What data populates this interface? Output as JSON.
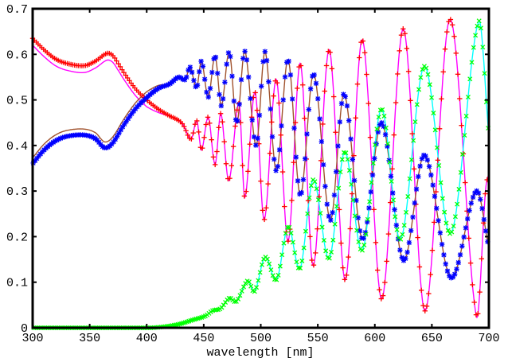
{
  "chart_data": {
    "type": "line",
    "title": "",
    "xlabel": "wavelength [nm]",
    "ylabel": "",
    "xlim": [
      300,
      700
    ],
    "ylim": [
      0,
      0.7
    ],
    "x_ticks": [
      "300",
      "350",
      "400",
      "450",
      "500",
      "550",
      "600",
      "650",
      "700"
    ],
    "y_ticks": [
      "0",
      "0.1",
      "0.2",
      "0.3",
      "0.4",
      "0.5",
      "0.6",
      "0.7"
    ],
    "grid": false,
    "legend": "none",
    "series": [
      {
        "name": "series-1",
        "marker": "plus",
        "marker_color": "#ff0000",
        "line_color": "#ff00ff",
        "line_offset_below_420": -0.015,
        "points": [
          [
            300,
            0.635
          ],
          [
            310,
            0.61
          ],
          [
            320,
            0.59
          ],
          [
            330,
            0.58
          ],
          [
            345,
            0.575
          ],
          [
            355,
            0.585
          ],
          [
            365,
            0.602
          ],
          [
            370,
            0.598
          ],
          [
            375,
            0.58
          ],
          [
            380,
            0.56
          ],
          [
            390,
            0.525
          ],
          [
            400,
            0.5
          ],
          [
            410,
            0.48
          ],
          [
            420,
            0.465
          ],
          [
            428,
            0.455
          ],
          [
            432,
            0.445
          ],
          [
            439,
            0.414
          ],
          [
            444,
            0.454
          ],
          [
            448,
            0.39
          ],
          [
            454,
            0.462
          ],
          [
            460,
            0.358
          ],
          [
            465,
            0.47
          ],
          [
            472,
            0.323
          ],
          [
            481,
            0.492
          ],
          [
            486,
            0.286
          ],
          [
            495,
            0.517
          ],
          [
            503,
            0.237
          ],
          [
            513.6,
            0.545
          ],
          [
            524,
            0.19
          ],
          [
            534.6,
            0.58
          ],
          [
            546,
            0.136
          ],
          [
            560,
            0.61
          ],
          [
            574,
            0.105
          ],
          [
            589,
            0.632
          ],
          [
            606,
            0.063
          ],
          [
            625,
            0.656
          ],
          [
            644,
            0.037
          ],
          [
            666,
            0.677
          ],
          [
            689,
            0.026
          ],
          [
            697,
            0.3
          ],
          [
            700,
            0.34
          ]
        ]
      },
      {
        "name": "series-2",
        "marker": "asterisk",
        "marker_color": "#0000ff",
        "line_color": "#a0522d",
        "line_offset_below_420": 0.013,
        "points": [
          [
            300,
            0.36
          ],
          [
            310,
            0.39
          ],
          [
            320,
            0.41
          ],
          [
            330,
            0.42
          ],
          [
            345,
            0.423
          ],
          [
            355,
            0.415
          ],
          [
            363,
            0.395
          ],
          [
            370,
            0.405
          ],
          [
            380,
            0.445
          ],
          [
            390,
            0.48
          ],
          [
            400,
            0.505
          ],
          [
            410,
            0.525
          ],
          [
            420,
            0.535
          ],
          [
            428,
            0.55
          ],
          [
            434,
            0.545
          ],
          [
            438,
            0.572
          ],
          [
            443.8,
            0.527
          ],
          [
            448,
            0.585
          ],
          [
            454,
            0.506
          ],
          [
            460,
            0.597
          ],
          [
            465.4,
            0.487
          ],
          [
            472.4,
            0.605
          ],
          [
            479,
            0.449
          ],
          [
            486,
            0.607
          ],
          [
            496,
            0.4
          ],
          [
            503.8,
            0.606
          ],
          [
            513.6,
            0.344
          ],
          [
            524,
            0.588
          ],
          [
            534.6,
            0.291
          ],
          [
            546.4,
            0.557
          ],
          [
            561,
            0.236
          ],
          [
            573,
            0.513
          ],
          [
            589,
            0.195
          ],
          [
            606,
            0.45
          ],
          [
            625,
            0.148
          ],
          [
            643.5,
            0.379
          ],
          [
            666.5,
            0.11
          ],
          [
            689,
            0.3
          ],
          [
            700,
            0.175
          ]
        ]
      },
      {
        "name": "series-3",
        "marker": "cross",
        "marker_color": "#00ff00",
        "line_color": "#00ffff",
        "line_offset_below_420": 0,
        "points": [
          [
            300,
            0
          ],
          [
            400,
            0
          ],
          [
            410,
            0.001
          ],
          [
            420,
            0.004
          ],
          [
            430,
            0.009
          ],
          [
            440,
            0.017
          ],
          [
            451.5,
            0.026
          ],
          [
            458,
            0.038
          ],
          [
            464.7,
            0.042
          ],
          [
            472.4,
            0.065
          ],
          [
            478.7,
            0.058
          ],
          [
            488.5,
            0.103
          ],
          [
            494.7,
            0.08
          ],
          [
            503.8,
            0.155
          ],
          [
            514,
            0.106
          ],
          [
            524,
            0.222
          ],
          [
            534.6,
            0.131
          ],
          [
            546,
            0.325
          ],
          [
            560,
            0.152
          ],
          [
            573.6,
            0.386
          ],
          [
            589,
            0.17
          ],
          [
            605.8,
            0.48
          ],
          [
            622.5,
            0.194
          ],
          [
            643.5,
            0.574
          ],
          [
            666.5,
            0.207
          ],
          [
            691,
            0.672
          ],
          [
            700,
            0.42
          ]
        ]
      }
    ]
  }
}
